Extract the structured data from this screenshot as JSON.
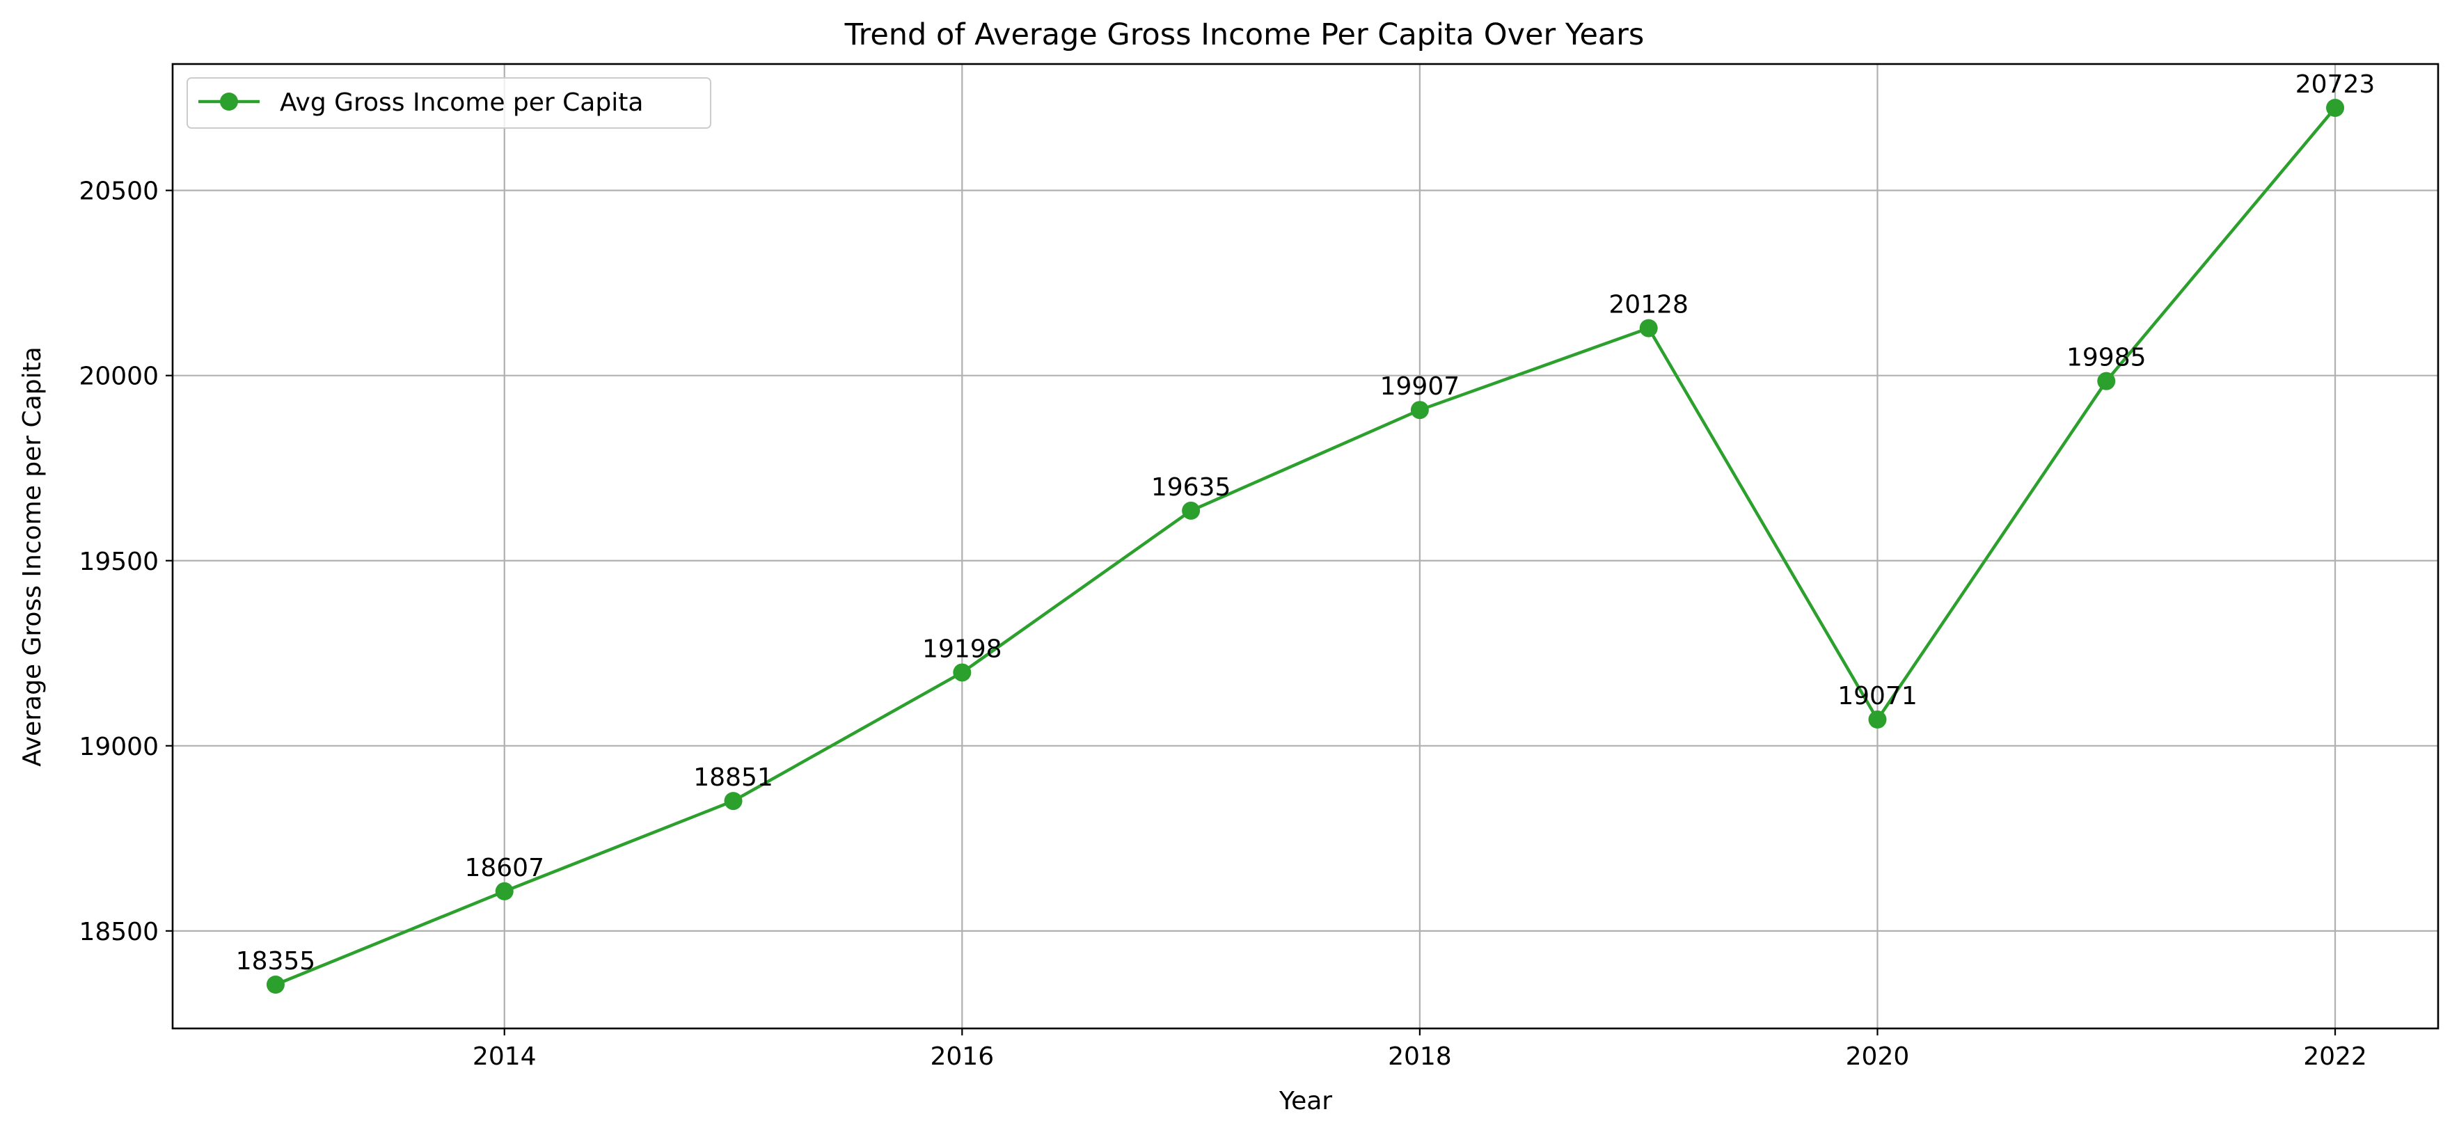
{
  "chart_data": {
    "type": "line",
    "title": "Trend of Average Gross Income Per Capita Over Years",
    "xlabel": "Year",
    "ylabel": "Average Gross Income per Capita",
    "x": [
      2013,
      2014,
      2015,
      2016,
      2017,
      2018,
      2019,
      2020,
      2021,
      2022
    ],
    "series": [
      {
        "name": "Avg Gross Income per Capita",
        "color": "#2ca02c",
        "marker": "circle",
        "values": [
          18355,
          18607,
          18851,
          19198,
          19635,
          19907,
          20128,
          19071,
          19985,
          20723
        ]
      }
    ],
    "data_labels": [
      "18355",
      "18607",
      "18851",
      "19198",
      "19635",
      "19907",
      "20128",
      "19071",
      "19985",
      "20723"
    ],
    "xlim": [
      2012.55,
      2022.45
    ],
    "ylim": [
      18236.6,
      20841.4
    ],
    "xticks": [
      2014,
      2016,
      2018,
      2020,
      2022
    ],
    "xtick_labels": [
      "2014",
      "2016",
      "2018",
      "2020",
      "2022"
    ],
    "yticks": [
      18500,
      19000,
      19500,
      20000,
      20500
    ],
    "ytick_labels": [
      "18500",
      "19000",
      "19500",
      "20000",
      "20500"
    ],
    "grid": true,
    "legend_position": "top-left",
    "colors": {
      "line": "#2ca02c",
      "grid": "#b0b0b0",
      "axes": "#000000",
      "background": "#ffffff"
    }
  }
}
